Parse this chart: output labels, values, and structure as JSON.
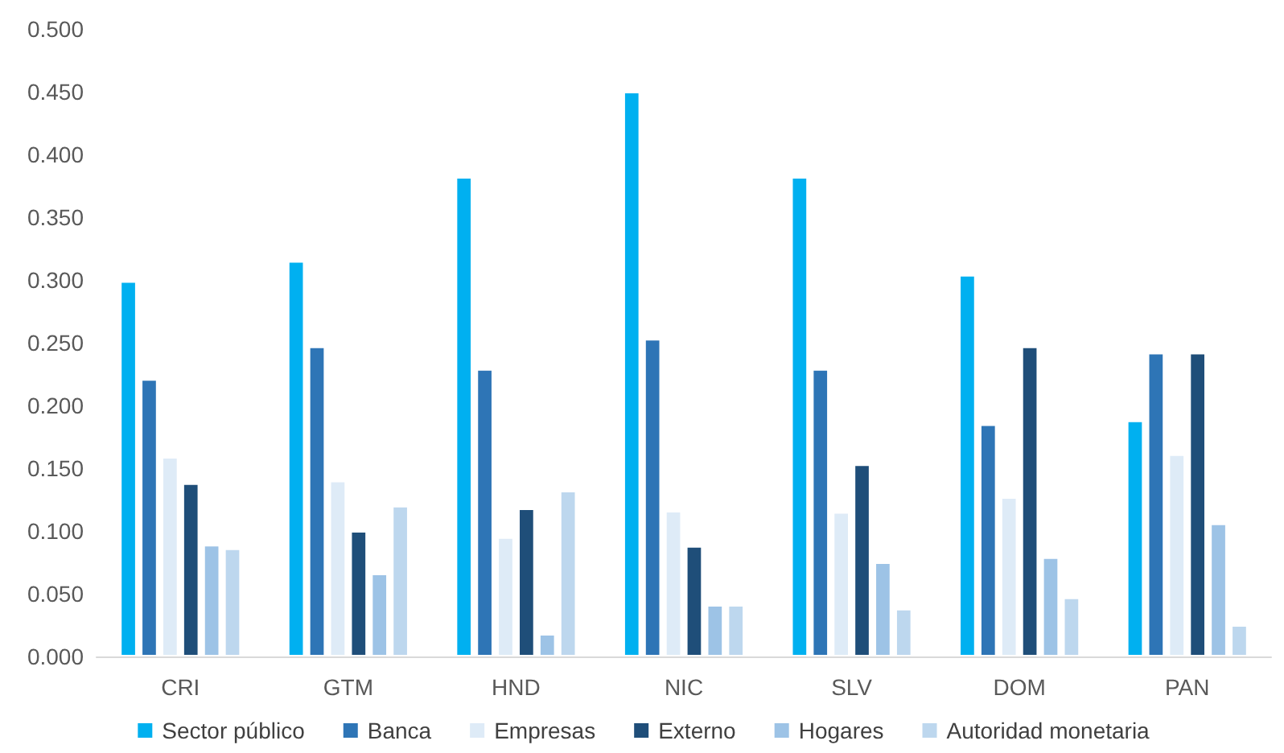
{
  "chart_data": {
    "type": "bar",
    "categories": [
      "CRI",
      "GTM",
      "HND",
      "NIC",
      "SLV",
      "DOM",
      "PAN"
    ],
    "series": [
      {
        "name": "Sector público",
        "color": "#00b0f0",
        "values": [
          0.299,
          0.315,
          0.382,
          0.45,
          0.382,
          0.304,
          0.188
        ]
      },
      {
        "name": "Banca",
        "color": "#2e75b6",
        "values": [
          0.221,
          0.247,
          0.229,
          0.253,
          0.229,
          0.185,
          0.242
        ]
      },
      {
        "name": "Empresas",
        "color": "#deebf7",
        "values": [
          0.159,
          0.14,
          0.095,
          0.116,
          0.115,
          0.127,
          0.161
        ]
      },
      {
        "name": "Externo",
        "color": "#1f4e79",
        "values": [
          0.138,
          0.1,
          0.118,
          0.088,
          0.153,
          0.247,
          0.242
        ]
      },
      {
        "name": "Hogares",
        "color": "#9dc3e6",
        "values": [
          0.089,
          0.066,
          0.018,
          0.041,
          0.075,
          0.079,
          0.106
        ]
      },
      {
        "name": "Autoridad monetaria",
        "color": "#bdd7ee",
        "values": [
          0.086,
          0.12,
          0.132,
          0.041,
          0.038,
          0.047,
          0.025
        ]
      }
    ],
    "ylim": [
      0,
      0.5
    ],
    "yticks": [
      {
        "value": 0,
        "label": "0.000"
      },
      {
        "value": 0.05,
        "label": "0.050"
      },
      {
        "value": 0.1,
        "label": "0.100"
      },
      {
        "value": 0.15,
        "label": "0.150"
      },
      {
        "value": 0.2,
        "label": "0.200"
      },
      {
        "value": 0.25,
        "label": "0.250"
      },
      {
        "value": 0.3,
        "label": "0.300"
      },
      {
        "value": 0.35,
        "label": "0.350"
      },
      {
        "value": 0.4,
        "label": "0.400"
      },
      {
        "value": 0.45,
        "label": "0.450"
      },
      {
        "value": 0.5,
        "label": "0.500"
      }
    ],
    "grid": false,
    "legend": "bottom"
  }
}
